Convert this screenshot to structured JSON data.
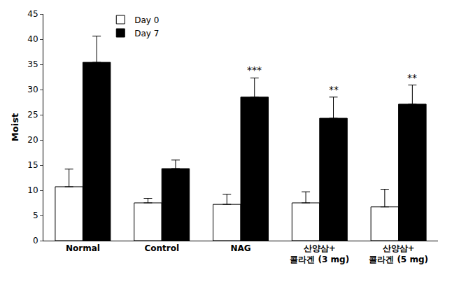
{
  "chart_data": {
    "type": "bar",
    "y_label": "Moist",
    "categories": [
      "Normal",
      "Control",
      "NAG",
      "산양삼+\n콜라겐 (3 mg)",
      "산양삼+\n콜라겐 (5 mg)"
    ],
    "series": [
      {
        "name": "Day 0",
        "color": "#ffffff",
        "values": [
          10.7,
          7.5,
          7.2,
          7.5,
          6.7
        ],
        "errors": [
          3.5,
          0.9,
          2.0,
          2.2,
          3.5
        ]
      },
      {
        "name": "Day 7",
        "color": "#000000",
        "values": [
          35.4,
          14.3,
          28.5,
          24.3,
          27.1
        ],
        "errors": [
          5.2,
          1.7,
          3.8,
          4.2,
          3.8
        ]
      }
    ],
    "annotations": [
      {
        "category": "NAG",
        "series": "Day 7",
        "text": "***"
      },
      {
        "category": "산양삼+\n콜라겐 (3 mg)",
        "series": "Day 7",
        "text": "**"
      },
      {
        "category": "산양삼+\n콜라겐 (5 mg)",
        "series": "Day 7",
        "text": "**"
      }
    ],
    "ylim": [
      0,
      45
    ],
    "yticks": [
      0,
      5,
      10,
      15,
      20,
      25,
      30,
      35,
      40,
      45
    ],
    "grid": false,
    "legend": "upper left"
  }
}
